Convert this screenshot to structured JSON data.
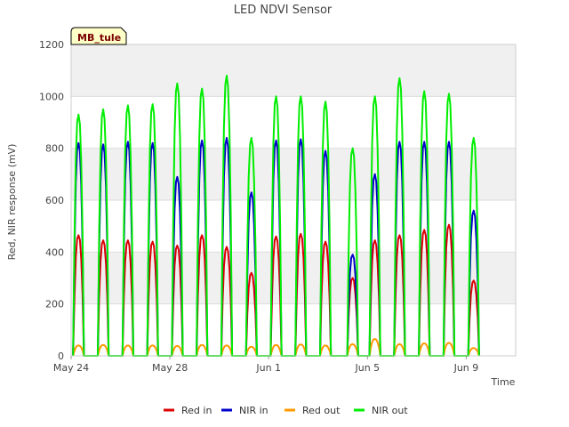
{
  "chart_data": {
    "type": "line",
    "title": "LED NDVI Sensor",
    "xlabel": "Time",
    "ylabel": "Red, NIR response (mV)",
    "badge": "MB_tule",
    "ylim": [
      0,
      1200
    ],
    "yticks": [
      0,
      200,
      400,
      600,
      800,
      1000,
      1200
    ],
    "xlim": [
      0,
      18
    ],
    "xticks": [
      {
        "t": 0,
        "label": "May 24"
      },
      {
        "t": 4,
        "label": "May 28"
      },
      {
        "t": 8,
        "label": "Jun 1"
      },
      {
        "t": 12,
        "label": "Jun 5"
      },
      {
        "t": 16,
        "label": "Jun 9"
      }
    ],
    "grid": true,
    "legend_position": "bottom",
    "days": [
      {
        "day": 0.3,
        "red_in": 465,
        "nir_in": 820,
        "red_out": 40,
        "nir_out": 930
      },
      {
        "day": 1.3,
        "red_in": 445,
        "nir_in": 815,
        "red_out": 42,
        "nir_out": 950
      },
      {
        "day": 2.3,
        "red_in": 445,
        "nir_in": 825,
        "red_out": 40,
        "nir_out": 965
      },
      {
        "day": 3.3,
        "red_in": 440,
        "nir_in": 820,
        "red_out": 40,
        "nir_out": 970
      },
      {
        "day": 4.3,
        "red_in": 425,
        "nir_in": 690,
        "red_out": 38,
        "nir_out": 1050
      },
      {
        "day": 5.3,
        "red_in": 465,
        "nir_in": 830,
        "red_out": 42,
        "nir_out": 1030
      },
      {
        "day": 6.3,
        "red_in": 420,
        "nir_in": 840,
        "red_out": 40,
        "nir_out": 1080
      },
      {
        "day": 7.3,
        "red_in": 320,
        "nir_in": 630,
        "red_out": 35,
        "nir_out": 840
      },
      {
        "day": 8.3,
        "red_in": 460,
        "nir_in": 830,
        "red_out": 42,
        "nir_out": 1000
      },
      {
        "day": 9.3,
        "red_in": 470,
        "nir_in": 835,
        "red_out": 44,
        "nir_out": 1000
      },
      {
        "day": 10.3,
        "red_in": 440,
        "nir_in": 790,
        "red_out": 40,
        "nir_out": 980
      },
      {
        "day": 11.4,
        "red_in": 300,
        "nir_in": 390,
        "red_out": 45,
        "nir_out": 800
      },
      {
        "day": 12.3,
        "red_in": 445,
        "nir_in": 700,
        "red_out": 65,
        "nir_out": 1000
      },
      {
        "day": 13.3,
        "red_in": 465,
        "nir_in": 825,
        "red_out": 45,
        "nir_out": 1070
      },
      {
        "day": 14.3,
        "red_in": 485,
        "nir_in": 825,
        "red_out": 48,
        "nir_out": 1020
      },
      {
        "day": 15.3,
        "red_in": 505,
        "nir_in": 825,
        "red_out": 50,
        "nir_out": 1010
      },
      {
        "day": 16.3,
        "red_in": 290,
        "nir_in": 560,
        "red_out": 30,
        "nir_out": 840
      }
    ],
    "series": [
      {
        "name": "Red in",
        "key": "red_in",
        "color": "#dd0000"
      },
      {
        "name": "NIR in",
        "key": "nir_in",
        "color": "#0000cc"
      },
      {
        "name": "Red out",
        "key": "red_out",
        "color": "#ff9900"
      },
      {
        "name": "NIR out",
        "key": "nir_out",
        "color": "#00ee00"
      }
    ]
  }
}
